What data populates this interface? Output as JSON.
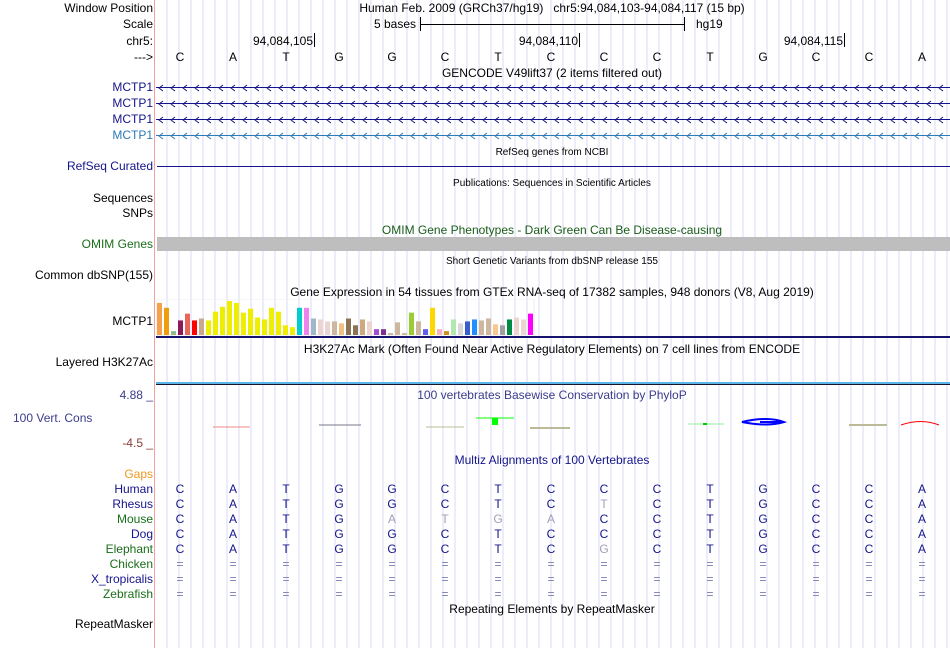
{
  "header": {
    "window_position_label": "Window Position",
    "window_position_value": "Human Feb. 2009 (GRCh37/hg19)   chr5:94,084,103-94,084,117 (15 bp)",
    "scale_label": "Scale",
    "scale_value": "5 bases",
    "scale_assembly": "hg19",
    "chrom_label": "chr5:",
    "strand_label": "--->",
    "coord_ticks": [
      "94,084,105",
      "94,084,110",
      "94,084,115"
    ],
    "bases": [
      "C",
      "A",
      "T",
      "G",
      "G",
      "C",
      "T",
      "C",
      "C",
      "C",
      "T",
      "G",
      "C",
      "C",
      "A"
    ]
  },
  "tracks": {
    "gencode": {
      "title": "GENCODE V49lift37 (2 items filtered out)",
      "genes": [
        "MCTP1",
        "MCTP1",
        "MCTP1",
        "MCTP1"
      ]
    },
    "refseq": {
      "title": "RefSeq genes from NCBI",
      "label": "RefSeq Curated"
    },
    "publications": {
      "title": "Publications: Sequences in Scientific Articles",
      "labels": [
        "Sequences",
        "SNPs"
      ]
    },
    "omim": {
      "title": "OMIM Gene Phenotypes - Dark Green Can Be Disease-causing",
      "label": "OMIM Genes"
    },
    "dbsnp": {
      "title": "Short Genetic Variants from dbSNP release 155",
      "label": "Common dbSNP(155)"
    },
    "gtex": {
      "title": "Gene Expression in 54 tissues from GTEx RNA-seq of 17382 samples, 948 donors (V8, Aug 2019)",
      "label": "MCTP1"
    },
    "h3k27ac": {
      "title": "H3K27Ac Mark (Often Found Near Active Regulatory Elements) on 7 cell lines from ENCODE",
      "label": "Layered H3K27Ac"
    },
    "phylop": {
      "title": "100 vertebrates Basewise Conservation by PhyloP",
      "label": "100 Vert. Cons",
      "max_label": "4.88 _",
      "min_label": "-4.5 _"
    },
    "multiz": {
      "title": "Multiz Alignments of 100 Vertebrates",
      "gaps_label": "Gaps",
      "species": [
        {
          "name": "Human",
          "seq": [
            "C",
            "A",
            "T",
            "G",
            "G",
            "C",
            "T",
            "C",
            "C",
            "C",
            "T",
            "G",
            "C",
            "C",
            "A"
          ],
          "gray": []
        },
        {
          "name": "Rhesus",
          "seq": [
            "C",
            "A",
            "T",
            "G",
            "G",
            "C",
            "T",
            "C",
            "T",
            "C",
            "T",
            "G",
            "C",
            "C",
            "A"
          ],
          "gray": [
            8
          ]
        },
        {
          "name": "Mouse",
          "seq": [
            "C",
            "A",
            "T",
            "G",
            "A",
            "T",
            "G",
            "A",
            "C",
            "C",
            "T",
            "G",
            "C",
            "C",
            "A"
          ],
          "gray": [
            4,
            5,
            6,
            7
          ]
        },
        {
          "name": "Dog",
          "seq": [
            "C",
            "A",
            "T",
            "G",
            "G",
            "C",
            "T",
            "C",
            "C",
            "C",
            "T",
            "G",
            "C",
            "C",
            "A"
          ],
          "gray": []
        },
        {
          "name": "Elephant",
          "seq": [
            "C",
            "A",
            "T",
            "G",
            "G",
            "C",
            "T",
            "C",
            "G",
            "C",
            "T",
            "G",
            "C",
            "C",
            "A"
          ],
          "gray": [
            8
          ]
        },
        {
          "name": "Chicken",
          "seq": [
            "=",
            "=",
            "=",
            "=",
            "=",
            "=",
            "=",
            "=",
            "=",
            "=",
            "=",
            "=",
            "=",
            "=",
            "="
          ],
          "gray": []
        },
        {
          "name": "X_tropicalis",
          "seq": [
            "=",
            "=",
            "=",
            "=",
            "=",
            "=",
            "=",
            "=",
            "=",
            "=",
            "=",
            "=",
            "=",
            "=",
            "="
          ],
          "gray": []
        },
        {
          "name": "Zebrafish",
          "seq": [
            "=",
            "=",
            "=",
            "=",
            "=",
            "=",
            "=",
            "=",
            "=",
            "=",
            "=",
            "=",
            "=",
            "=",
            "="
          ],
          "gray": []
        }
      ]
    },
    "repeatmasker": {
      "title": "Repeating Elements by RepeatMasker",
      "label": "RepeatMasker"
    }
  },
  "chart_data": {
    "type": "bar",
    "title": "Gene Expression in 54 tissues from GTEx RNA-seq of 17382 samples, 948 donors (V8, Aug 2019)",
    "values": [
      33,
      28,
      4,
      15,
      22,
      15,
      17,
      15,
      24,
      29,
      35,
      33,
      23,
      27,
      18,
      16,
      28,
      24,
      10,
      8,
      28,
      28,
      17,
      16,
      14,
      14,
      12,
      17,
      10,
      16,
      14,
      6,
      6,
      2,
      13,
      2,
      23,
      14,
      6,
      28,
      6,
      4,
      16,
      12,
      14,
      16,
      15,
      17,
      11,
      10,
      16,
      18,
      16,
      22
    ],
    "colors": [
      "#f7a04a",
      "#f09c0c",
      "#8fbc8f",
      "#8b1a5a",
      "#e9665b",
      "#ff0000",
      "#c8a890",
      "#eeee00",
      "#eeee00",
      "#eeee00",
      "#eeee00",
      "#eeee00",
      "#eeee00",
      "#eeee00",
      "#eeee00",
      "#eeee00",
      "#eeee00",
      "#eeee00",
      "#eeee00",
      "#eeee00",
      "#00cdcd",
      "#ee82ee",
      "#9fb8c8",
      "#ecd4d0",
      "#ecd4d0",
      "#cdb79e",
      "#f0c080",
      "#8b7355",
      "#8b7355",
      "#cdaa7d",
      "#ecd4d0",
      "#a050d0",
      "#803090",
      "#cdb79e",
      "#cdb79e",
      "#cdb79e",
      "#9acd32",
      "#cdb79e",
      "#6060ee",
      "#ffd700",
      "#f8b0c0",
      "#cc9020",
      "#b0e8b0",
      "#d8d8d8",
      "#3a5fcd",
      "#1e90ff",
      "#cdb79e",
      "#cdb79e",
      "#f8c890",
      "#a0a0a0",
      "#008b45",
      "#ecd4d0",
      "#ecd4d0",
      "#ff00ff"
    ]
  }
}
